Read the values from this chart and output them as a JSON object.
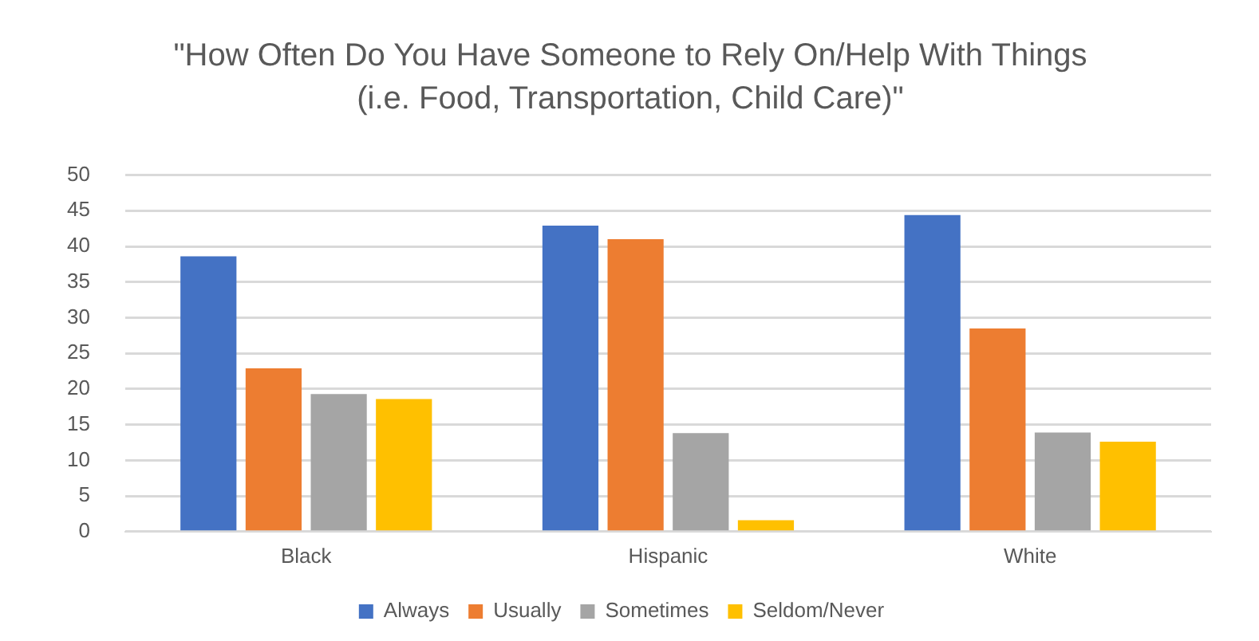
{
  "chart_data": {
    "type": "bar",
    "title": "\"How Often Do You Have Someone to Rely On/Help With Things (i.e. Food, Transportation, Child Care)\"",
    "categories": [
      "Black",
      "Hispanic",
      "White"
    ],
    "series": [
      {
        "name": "Always",
        "color": "#4472c4",
        "values": [
          38.6,
          42.9,
          44.4
        ]
      },
      {
        "name": "Usually",
        "color": "#ed7d31",
        "values": [
          22.9,
          41.0,
          28.5
        ]
      },
      {
        "name": "Sometimes",
        "color": "#a5a5a5",
        "values": [
          19.3,
          13.8,
          13.9
        ]
      },
      {
        "name": "Seldom/Never",
        "color": "#ffc000",
        "values": [
          18.6,
          1.6,
          12.6
        ]
      }
    ],
    "ylim": [
      0,
      50
    ],
    "yticks": [
      0,
      5,
      10,
      15,
      20,
      25,
      30,
      35,
      40,
      45,
      50
    ],
    "grid": "y",
    "legend": "bottom"
  }
}
